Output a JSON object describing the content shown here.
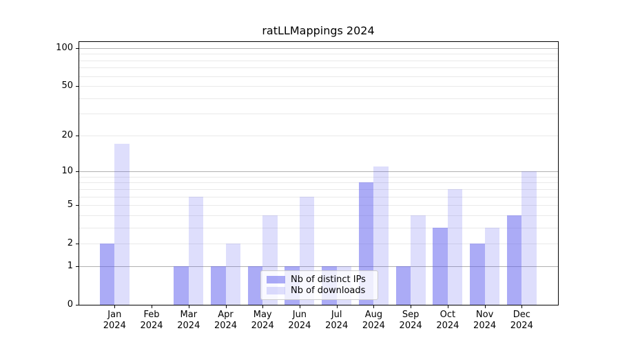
{
  "title": "ratLLMappings 2024",
  "chart_data": {
    "type": "bar",
    "title": "ratLLMappings 2024",
    "scale": "log1p",
    "ylim": [
      0,
      113
    ],
    "grid": true,
    "year_label": "2024",
    "categories": [
      "Jan",
      "Feb",
      "Mar",
      "Apr",
      "May",
      "Jun",
      "Jul",
      "Aug",
      "Sep",
      "Oct",
      "Nov",
      "Dec"
    ],
    "series": [
      {
        "name": "Nb of distinct IPs",
        "color": "rgba(88,88,238,0.50)",
        "values": [
          2,
          0,
          1,
          1,
          1,
          1,
          1,
          8,
          1,
          3,
          2,
          4
        ]
      },
      {
        "name": "Nb of downloads",
        "color": "rgba(88,88,238,0.20)",
        "values": [
          17,
          0,
          6,
          2,
          4,
          6,
          1,
          11,
          4,
          7,
          3,
          10
        ]
      }
    ],
    "y_tick_labels": [
      0,
      1,
      2,
      5,
      10,
      20,
      50,
      100
    ],
    "y_major_gridlines": [
      1,
      10,
      100
    ],
    "y_minor_gridlines": [
      2,
      3,
      4,
      5,
      6,
      7,
      8,
      9,
      20,
      30,
      40,
      50,
      60,
      70,
      80,
      90
    ],
    "legend": {
      "position": "lower-center",
      "entries": [
        "Nb of distinct IPs",
        "Nb of downloads"
      ]
    }
  },
  "colors": {
    "background": "#ffffff",
    "spine": "#000000",
    "grid_major": "#b0b0b0",
    "grid_minor": "#e9e9e9",
    "text": "#000000",
    "series_ips": "rgba(88,88,238,0.50)",
    "series_downloads": "rgba(88,88,238,0.20)"
  }
}
